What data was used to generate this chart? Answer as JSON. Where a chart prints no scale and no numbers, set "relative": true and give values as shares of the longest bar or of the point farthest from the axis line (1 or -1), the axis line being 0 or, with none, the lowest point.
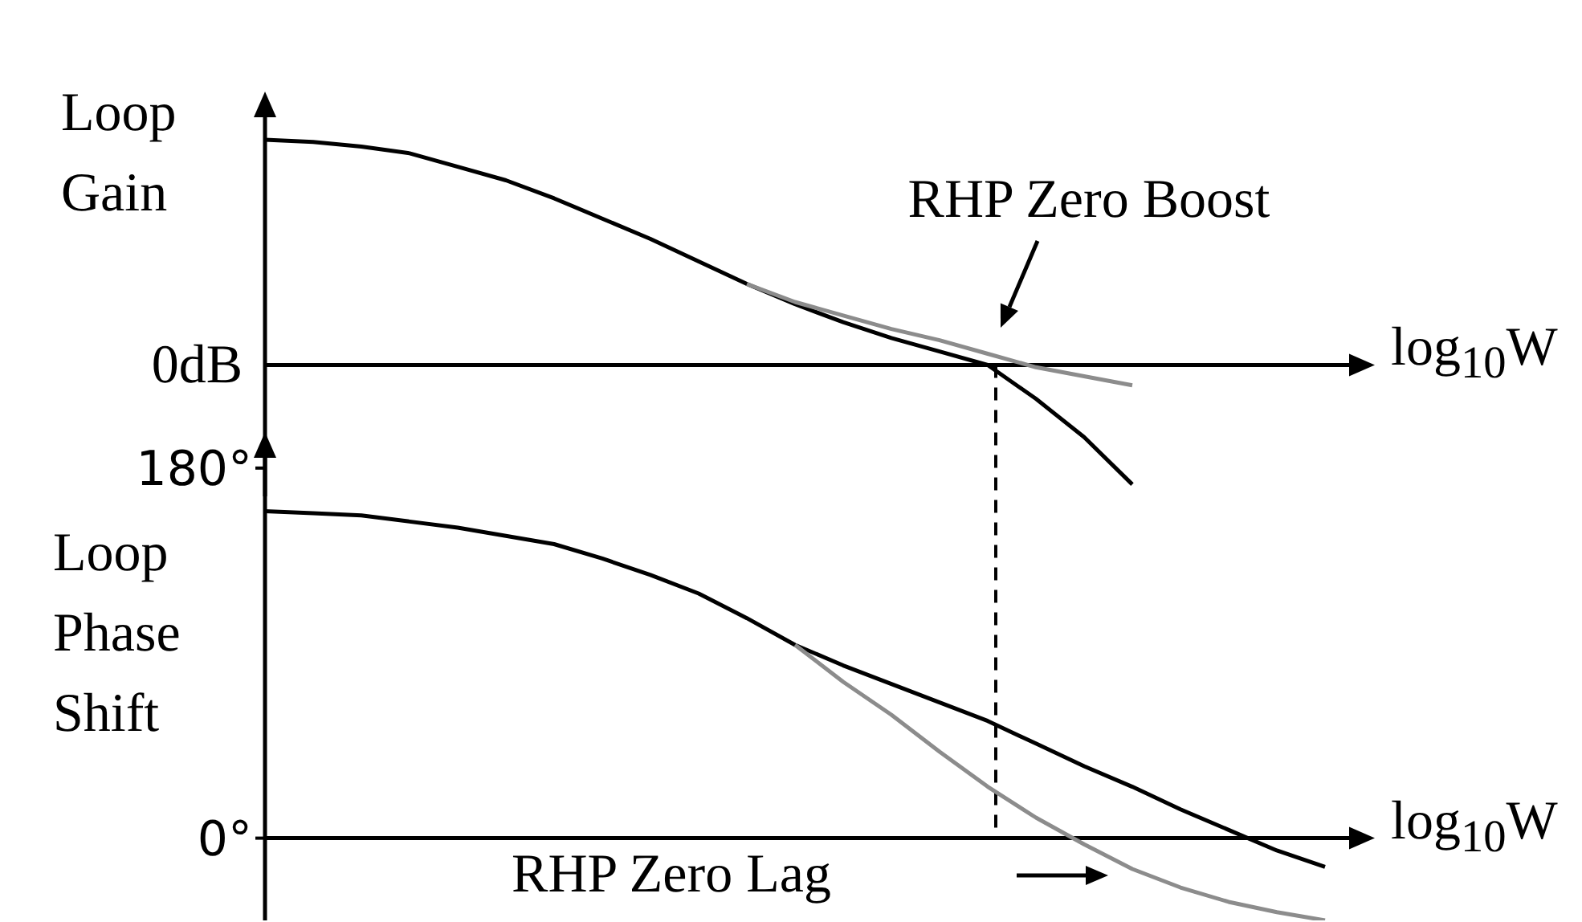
{
  "chart_data": [
    {
      "type": "line",
      "relative": true,
      "ylabel": "Loop Gain",
      "xlabel": "log$_{10}$W",
      "tick_labels": false,
      "grid": false,
      "legend": false,
      "marker": "none",
      "line_style": "solid",
      "categories": [
        null,
        null,
        null,
        null,
        null,
        null,
        null,
        null,
        null,
        null,
        null,
        null,
        null,
        null,
        null,
        null,
        null,
        null,
        null,
        null,
        null,
        null,
        null
      ],
      "series": [
        {
          "color": "#000000",
          "values": [
            1.0,
            0.99,
            0.97,
            0.94,
            0.88,
            0.82,
            0.74,
            0.65,
            0.56,
            0.46,
            0.36,
            0.27,
            0.19,
            0.12,
            0.06,
            0,
            -0.15,
            -0.32,
            -0.53,
            null,
            null,
            null,
            null
          ]
        },
        {
          "color": "#8c8c8c",
          "values": [
            null,
            null,
            null,
            null,
            null,
            null,
            null,
            null,
            null,
            null,
            0.36,
            0.28,
            0.22,
            0.16,
            0.11,
            0.05,
            -0.01,
            -0.05,
            -0.09,
            null,
            null,
            null,
            null
          ]
        }
      ],
      "ref_lines": [
        {
          "axis": "y",
          "value": 0,
          "label": "0dB"
        }
      ],
      "annotations": [
        "RHP Zero Boost"
      ]
    },
    {
      "type": "line",
      "ylabel": "Loop Phase Shift",
      "xlabel": "log$_{10}$W",
      "tick_labels": "y",
      "grid": false,
      "legend": false,
      "marker": "none",
      "line_style": "solid",
      "categories": [
        null,
        null,
        null,
        null,
        null,
        null,
        null,
        null,
        null,
        null,
        null,
        null,
        null,
        null,
        null,
        null,
        null,
        null,
        null,
        null,
        null,
        null,
        null
      ],
      "ylim": [
        -40,
        185
      ],
      "yticks": [
        {
          "value": 0,
          "label": "0°"
        },
        {
          "value": 180,
          "label": "180°"
        }
      ],
      "series": [
        {
          "color": "#000000",
          "values": [
            159,
            158,
            157,
            154,
            151,
            147,
            143,
            136,
            128,
            119,
            107,
            94,
            84,
            75,
            66,
            57,
            46,
            35,
            25,
            14,
            4,
            -6,
            -14
          ]
        },
        {
          "color": "#8c8c8c",
          "values": [
            null,
            null,
            null,
            null,
            null,
            null,
            null,
            null,
            null,
            null,
            null,
            94,
            76,
            60,
            42,
            25,
            10,
            -3,
            -15,
            -24,
            -31,
            -36,
            -40
          ]
        }
      ],
      "ref_lines": [
        {
          "axis": "y",
          "value": 0
        }
      ],
      "annotations": [
        "RHP Zero Lag"
      ]
    }
  ]
}
